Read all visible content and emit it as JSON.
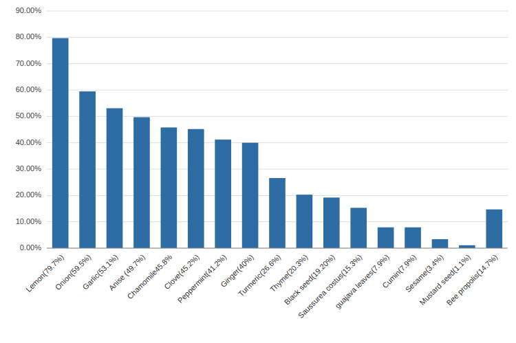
{
  "chart_data": {
    "type": "bar",
    "categories": [
      "Lemon(79.7%)",
      "Onion(59.5%)",
      "Garlic(53.1%)",
      "Anise (49.7%)",
      "Chamomile45.8%",
      "Clove(45.2%)",
      "Peppermint(41.2%)",
      "Ginger(40%)",
      "Turmeric(26.6%)",
      "Thyme(20.3%)",
      "Black seed(19.20%)",
      "Saussurea costus(15.3%)",
      "guajava leaves(7.9%)",
      "Cumin(7.9%)",
      "Sesame(3.4%)",
      "Mustard seed(1.1%)",
      "Bee propolis(14.7%)"
    ],
    "values": [
      79.7,
      59.5,
      53.1,
      49.7,
      45.8,
      45.2,
      41.2,
      40.0,
      26.6,
      20.3,
      19.2,
      15.3,
      7.9,
      7.9,
      3.4,
      1.1,
      14.7
    ],
    "color": "#2E6DA4",
    "ylim": [
      0,
      90
    ],
    "yticks": [
      {
        "value": 0,
        "label": "0.00%"
      },
      {
        "value": 10,
        "label": "10.00%"
      },
      {
        "value": 20,
        "label": "20.00%"
      },
      {
        "value": 30,
        "label": "30.00%"
      },
      {
        "value": 40,
        "label": "40.00%"
      },
      {
        "value": 50,
        "label": "50.00%"
      },
      {
        "value": 60,
        "label": "60.00%"
      },
      {
        "value": 70,
        "label": "70.00%"
      },
      {
        "value": 80,
        "label": "80.00%"
      },
      {
        "value": 90,
        "label": "90.00%"
      }
    ],
    "grid": true
  }
}
